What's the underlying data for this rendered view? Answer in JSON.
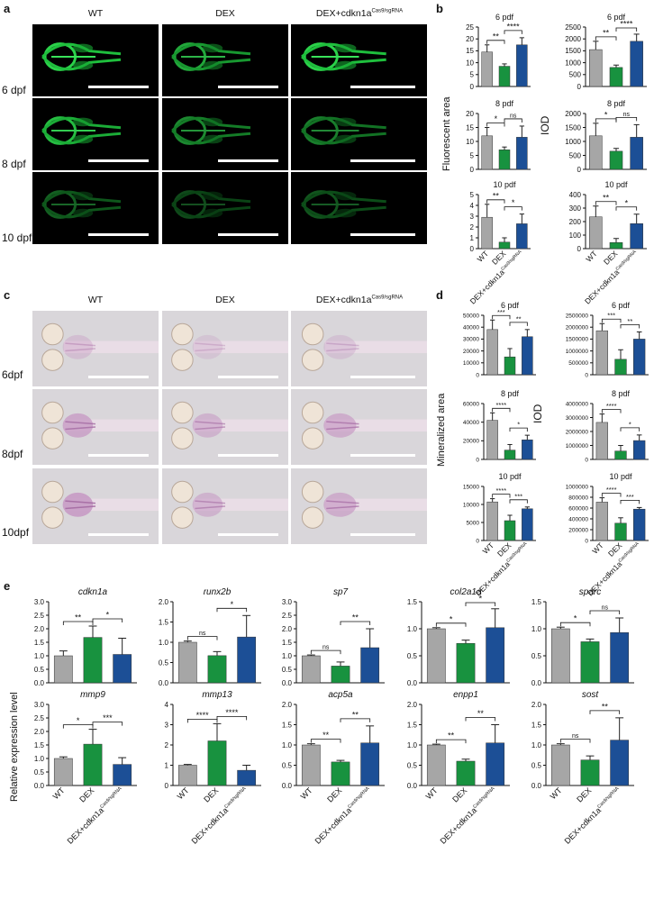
{
  "panels": {
    "a": {
      "letter": "a",
      "columns": [
        "WT",
        "DEX",
        "DEX+cdkn1a"
      ],
      "sup": "Cas9/sgRNA",
      "rows": [
        "6 dpf",
        "8 dpf",
        "10 dpf"
      ]
    },
    "c": {
      "letter": "c",
      "columns": [
        "WT",
        "DEX",
        "DEX+cdkn1a"
      ],
      "sup": "Cas9/sgRNA",
      "rows": [
        "6dpf",
        "8dpf",
        "10dpf"
      ]
    },
    "b": {
      "letter": "b",
      "ylabel_left": "Fluorescent area",
      "ylabel_right": "IOD"
    },
    "d": {
      "letter": "d",
      "ylabel_left": "Mineralized area",
      "ylabel_right": "IOD"
    },
    "e": {
      "letter": "e",
      "ylabel": "Relative expression level"
    }
  },
  "x_categories": [
    "WT",
    "DEX",
    "DEX+cdkn1a"
  ],
  "x_sup": "Cas9/sgRNA",
  "colors": {
    "WT": "#a6a6a6",
    "DEX": "#18923f",
    "CRISPR": "#1c4f96"
  },
  "chart_data": [
    {
      "type": "bar",
      "panel": "b",
      "title": "6 pdf",
      "ylabel": "Fluorescent area",
      "categories": [
        "WT",
        "DEX",
        "DEX+cdkn1a"
      ],
      "values": [
        14.5,
        8.5,
        17.5
      ],
      "errors": [
        3,
        1,
        3
      ],
      "ylim": [
        0,
        25
      ],
      "ticks": [
        0,
        5,
        10,
        15,
        20,
        25
      ],
      "tick_labels": [
        "0",
        "5",
        "10",
        "15",
        "20",
        "25"
      ],
      "sig": [
        {
          "from": 0,
          "to": 1,
          "label": "**"
        },
        {
          "from": 1,
          "to": 2,
          "label": "****"
        }
      ]
    },
    {
      "type": "bar",
      "panel": "b",
      "title": "6 pdf",
      "ylabel": "IOD",
      "categories": [
        "WT",
        "DEX",
        "DEX+cdkn1a"
      ],
      "values": [
        1550,
        800,
        1900
      ],
      "errors": [
        350,
        100,
        300
      ],
      "ylim": [
        0,
        2500
      ],
      "ticks": [
        0,
        500,
        1000,
        1500,
        2000,
        2500
      ],
      "tick_labels": [
        "0",
        "500",
        "1000",
        "1500",
        "2000",
        "2500"
      ],
      "sig": [
        {
          "from": 0,
          "to": 1,
          "label": "**"
        },
        {
          "from": 1,
          "to": 2,
          "label": "****"
        }
      ]
    },
    {
      "type": "bar",
      "panel": "b",
      "title": "8 pdf",
      "ylabel": "Fluorescent area",
      "categories": [
        "WT",
        "DEX",
        "DEX+cdkn1a"
      ],
      "values": [
        12,
        7,
        11.5
      ],
      "errors": [
        3,
        1,
        4
      ],
      "ylim": [
        0,
        20
      ],
      "ticks": [
        0,
        5,
        10,
        15,
        20
      ],
      "tick_labels": [
        "0",
        "5",
        "10",
        "15",
        "20"
      ],
      "sig": [
        {
          "from": 0,
          "to": 1,
          "label": "*"
        },
        {
          "from": 1,
          "to": 2,
          "label": "ns"
        }
      ]
    },
    {
      "type": "bar",
      "panel": "b",
      "title": "8 pdf",
      "ylabel": "IOD",
      "categories": [
        "WT",
        "DEX",
        "DEX+cdkn1a"
      ],
      "values": [
        1200,
        650,
        1150
      ],
      "errors": [
        450,
        100,
        450
      ],
      "ylim": [
        0,
        2000
      ],
      "ticks": [
        0,
        500,
        1000,
        1500,
        2000
      ],
      "tick_labels": [
        "0",
        "500",
        "1000",
        "1500",
        "2000"
      ],
      "sig": [
        {
          "from": 0,
          "to": 1,
          "label": "*"
        },
        {
          "from": 1,
          "to": 2,
          "label": "ns"
        }
      ]
    },
    {
      "type": "bar",
      "panel": "b",
      "title": "10 pdf",
      "ylabel": "Fluorescent area",
      "categories": [
        "WT",
        "DEX",
        "DEX+cdkn1a"
      ],
      "values": [
        2.9,
        0.6,
        2.3
      ],
      "errors": [
        1.2,
        0.4,
        0.9
      ],
      "ylim": [
        0,
        5
      ],
      "ticks": [
        0,
        1,
        2,
        3,
        4,
        5
      ],
      "tick_labels": [
        "0",
        "1",
        "2",
        "3",
        "4",
        "5"
      ],
      "sig": [
        {
          "from": 0,
          "to": 1,
          "label": "**"
        },
        {
          "from": 1,
          "to": 2,
          "label": "*"
        }
      ]
    },
    {
      "type": "bar",
      "panel": "b",
      "title": "10 pdf",
      "ylabel": "IOD",
      "categories": [
        "WT",
        "DEX",
        "DEX+cdkn1a"
      ],
      "values": [
        235,
        45,
        185
      ],
      "errors": [
        80,
        30,
        70
      ],
      "ylim": [
        0,
        400
      ],
      "ticks": [
        0,
        100,
        200,
        300,
        400
      ],
      "tick_labels": [
        "0",
        "100",
        "200",
        "300",
        "400"
      ],
      "sig": [
        {
          "from": 0,
          "to": 1,
          "label": "**"
        },
        {
          "from": 1,
          "to": 2,
          "label": "*"
        }
      ]
    },
    {
      "type": "bar",
      "panel": "d",
      "title": "6 pdf",
      "ylabel": "Mineralized area",
      "categories": [
        "WT",
        "DEX",
        "DEX+cdkn1a"
      ],
      "values": [
        38000,
        15000,
        32000
      ],
      "errors": [
        8000,
        7000,
        6000
      ],
      "ylim": [
        0,
        50000
      ],
      "ticks": [
        0,
        10000,
        20000,
        30000,
        40000,
        50000
      ],
      "tick_labels": [
        "0",
        "10000",
        "20000",
        "30000",
        "40000",
        "50000"
      ],
      "sig": [
        {
          "from": 0,
          "to": 1,
          "label": "***"
        },
        {
          "from": 1,
          "to": 2,
          "label": "**"
        }
      ]
    },
    {
      "type": "bar",
      "panel": "d",
      "title": "6 pdf",
      "ylabel": "IOD",
      "categories": [
        "WT",
        "DEX",
        "DEX+cdkn1a"
      ],
      "values": [
        1850000,
        650000,
        1500000
      ],
      "errors": [
        300000,
        400000,
        300000
      ],
      "ylim": [
        0,
        2500000
      ],
      "ticks": [
        0,
        500000,
        1000000,
        1500000,
        2000000,
        2500000
      ],
      "tick_labels": [
        "0",
        "500000",
        "1000000",
        "1500000",
        "2000000",
        "2500000"
      ],
      "sig": [
        {
          "from": 0,
          "to": 1,
          "label": "***"
        },
        {
          "from": 1,
          "to": 2,
          "label": "**"
        }
      ]
    },
    {
      "type": "bar",
      "panel": "d",
      "title": "8 pdf",
      "ylabel": "Mineralized area",
      "categories": [
        "WT",
        "DEX",
        "DEX+cdkn1a"
      ],
      "values": [
        42000,
        10000,
        21000
      ],
      "errors": [
        8000,
        6000,
        5000
      ],
      "ylim": [
        0,
        60000
      ],
      "ticks": [
        0,
        20000,
        40000,
        60000
      ],
      "tick_labels": [
        "0",
        "20000",
        "40000",
        "60000"
      ],
      "sig": [
        {
          "from": 0,
          "to": 1,
          "label": "****"
        },
        {
          "from": 1,
          "to": 2,
          "label": "*"
        }
      ]
    },
    {
      "type": "bar",
      "panel": "d",
      "title": "8 pdf",
      "ylabel": "IOD",
      "categories": [
        "WT",
        "DEX",
        "DEX+cdkn1a"
      ],
      "values": [
        2650000,
        600000,
        1350000
      ],
      "errors": [
        600000,
        400000,
        400000
      ],
      "ylim": [
        0,
        4000000
      ],
      "ticks": [
        0,
        1000000,
        2000000,
        3000000,
        4000000
      ],
      "tick_labels": [
        "0",
        "1000000",
        "2000000",
        "3000000",
        "4000000"
      ],
      "sig": [
        {
          "from": 0,
          "to": 1,
          "label": "****"
        },
        {
          "from": 1,
          "to": 2,
          "label": "*"
        }
      ]
    },
    {
      "type": "bar",
      "panel": "d",
      "title": "10 pdf",
      "ylabel": "Mineralized area",
      "categories": [
        "WT",
        "DEX",
        "DEX+cdkn1a"
      ],
      "values": [
        10700,
        5500,
        8800
      ],
      "errors": [
        900,
        1500,
        500
      ],
      "ylim": [
        0,
        15000
      ],
      "ticks": [
        0,
        5000,
        10000,
        15000
      ],
      "tick_labels": [
        "0",
        "5000",
        "10000",
        "15000"
      ],
      "sig": [
        {
          "from": 0,
          "to": 1,
          "label": "****"
        },
        {
          "from": 1,
          "to": 2,
          "label": "***"
        }
      ]
    },
    {
      "type": "bar",
      "panel": "d",
      "title": "10 pdf",
      "ylabel": "IOD",
      "categories": [
        "WT",
        "DEX",
        "DEX+cdkn1a"
      ],
      "values": [
        710000,
        320000,
        580000
      ],
      "errors": [
        80000,
        100000,
        30000
      ],
      "ylim": [
        0,
        1000000
      ],
      "ticks": [
        0,
        200000,
        400000,
        600000,
        800000,
        1000000
      ],
      "tick_labels": [
        "0",
        "200000",
        "400000",
        "600000",
        "800000",
        "1000000"
      ],
      "sig": [
        {
          "from": 0,
          "to": 1,
          "label": "****"
        },
        {
          "from": 1,
          "to": 2,
          "label": "***"
        }
      ]
    },
    {
      "type": "bar",
      "panel": "e",
      "title": "cdkn1a",
      "categories": [
        "WT",
        "DEX",
        "DEX+cdkn1a"
      ],
      "values": [
        1.0,
        1.68,
        1.05
      ],
      "errors": [
        0.18,
        0.42,
        0.6
      ],
      "ylim": [
        0,
        3.0
      ],
      "ticks": [
        0,
        0.5,
        1,
        1.5,
        2,
        2.5,
        3
      ],
      "tick_labels": [
        "0.0",
        "0.5",
        "1.0",
        "1.5",
        "2.0",
        "2.5",
        "3.0"
      ],
      "sig": [
        {
          "from": 0,
          "to": 1,
          "label": "**"
        },
        {
          "from": 1,
          "to": 2,
          "label": "*"
        }
      ]
    },
    {
      "type": "bar",
      "panel": "e",
      "title": "runx2b",
      "categories": [
        "WT",
        "DEX",
        "DEX+cdkn1a"
      ],
      "values": [
        1.0,
        0.67,
        1.13
      ],
      "errors": [
        0.03,
        0.1,
        0.53
      ],
      "ylim": [
        0,
        2.0
      ],
      "ticks": [
        0,
        0.5,
        1,
        1.5,
        2
      ],
      "tick_labels": [
        "0.0",
        "0.5",
        "1.0",
        "1.5",
        "2.0"
      ],
      "sig": [
        {
          "from": 0,
          "to": 1,
          "label": "ns"
        },
        {
          "from": 1,
          "to": 2,
          "label": "*"
        }
      ]
    },
    {
      "type": "bar",
      "panel": "e",
      "title": "sp7",
      "categories": [
        "WT",
        "DEX",
        "DEX+cdkn1a"
      ],
      "values": [
        1.0,
        0.62,
        1.3
      ],
      "errors": [
        0.03,
        0.15,
        0.7
      ],
      "ylim": [
        0,
        3.0
      ],
      "ticks": [
        0,
        0.5,
        1,
        1.5,
        2,
        2.5,
        3
      ],
      "tick_labels": [
        "0.0",
        "0.5",
        "1.0",
        "1.5",
        "2.0",
        "2.5",
        "3.0"
      ],
      "sig": [
        {
          "from": 0,
          "to": 1,
          "label": "ns"
        },
        {
          "from": 1,
          "to": 2,
          "label": "**"
        }
      ]
    },
    {
      "type": "bar",
      "panel": "e",
      "title": "col2a1a",
      "categories": [
        "WT",
        "DEX",
        "DEX+cdkn1a"
      ],
      "values": [
        1.0,
        0.73,
        1.02
      ],
      "errors": [
        0.02,
        0.06,
        0.35
      ],
      "ylim": [
        0,
        1.5
      ],
      "ticks": [
        0,
        0.5,
        1,
        1.5
      ],
      "tick_labels": [
        "0.0",
        "0.5",
        "1.0",
        "1.5"
      ],
      "sig": [
        {
          "from": 0,
          "to": 1,
          "label": "*"
        },
        {
          "from": 1,
          "to": 2,
          "label": "*"
        }
      ]
    },
    {
      "type": "bar",
      "panel": "e",
      "title": "sparc",
      "categories": [
        "WT",
        "DEX",
        "DEX+cdkn1a"
      ],
      "values": [
        1.0,
        0.76,
        0.93
      ],
      "errors": [
        0.03,
        0.05,
        0.27
      ],
      "ylim": [
        0,
        1.5
      ],
      "ticks": [
        0,
        0.5,
        1,
        1.5
      ],
      "tick_labels": [
        "0.0",
        "0.5",
        "1.0",
        "1.5"
      ],
      "sig": [
        {
          "from": 0,
          "to": 1,
          "label": "*"
        },
        {
          "from": 1,
          "to": 2,
          "label": "ns"
        }
      ]
    },
    {
      "type": "bar",
      "panel": "e",
      "title": "mmp9",
      "categories": [
        "WT",
        "DEX",
        "DEX+cdkn1a"
      ],
      "values": [
        1.0,
        1.53,
        0.78
      ],
      "errors": [
        0.06,
        0.55,
        0.25
      ],
      "ylim": [
        0,
        3.0
      ],
      "ticks": [
        0,
        0.5,
        1,
        1.5,
        2,
        2.5,
        3
      ],
      "tick_labels": [
        "0.0",
        "0.5",
        "1.0",
        "1.5",
        "2.0",
        "2.5",
        "3.0"
      ],
      "sig": [
        {
          "from": 0,
          "to": 1,
          "label": "*"
        },
        {
          "from": 1,
          "to": 2,
          "label": "***"
        }
      ]
    },
    {
      "type": "bar",
      "panel": "e",
      "title": "mmp13",
      "categories": [
        "WT",
        "DEX",
        "DEX+cdkn1a"
      ],
      "values": [
        1.0,
        2.2,
        0.75
      ],
      "errors": [
        0.04,
        0.85,
        0.25
      ],
      "ylim": [
        0,
        4
      ],
      "ticks": [
        0,
        1,
        2,
        3,
        4
      ],
      "tick_labels": [
        "0",
        "1",
        "2",
        "3",
        "4"
      ],
      "sig": [
        {
          "from": 0,
          "to": 1,
          "label": "****"
        },
        {
          "from": 1,
          "to": 2,
          "label": "****"
        }
      ]
    },
    {
      "type": "bar",
      "panel": "e",
      "title": "acp5a",
      "categories": [
        "WT",
        "DEX",
        "DEX+cdkn1a"
      ],
      "values": [
        1.0,
        0.58,
        1.05
      ],
      "errors": [
        0.03,
        0.04,
        0.42
      ],
      "ylim": [
        0,
        2.0
      ],
      "ticks": [
        0,
        0.5,
        1,
        1.5,
        2
      ],
      "tick_labels": [
        "0.0",
        "0.5",
        "1.0",
        "1.5",
        "2.0"
      ],
      "sig": [
        {
          "from": 0,
          "to": 1,
          "label": "**"
        },
        {
          "from": 1,
          "to": 2,
          "label": "**"
        }
      ]
    },
    {
      "type": "bar",
      "panel": "e",
      "title": "enpp1",
      "categories": [
        "WT",
        "DEX",
        "DEX+cdkn1a"
      ],
      "values": [
        1.0,
        0.6,
        1.05
      ],
      "errors": [
        0.02,
        0.05,
        0.45
      ],
      "ylim": [
        0,
        2.0
      ],
      "ticks": [
        0,
        0.5,
        1,
        1.5,
        2
      ],
      "tick_labels": [
        "0.0",
        "0.5",
        "1.0",
        "1.5",
        "2.0"
      ],
      "sig": [
        {
          "from": 0,
          "to": 1,
          "label": "**"
        },
        {
          "from": 1,
          "to": 2,
          "label": "**"
        }
      ]
    },
    {
      "type": "bar",
      "panel": "e",
      "title": "sost",
      "categories": [
        "WT",
        "DEX",
        "DEX+cdkn1a"
      ],
      "values": [
        1.0,
        0.63,
        1.12
      ],
      "errors": [
        0.03,
        0.1,
        0.55
      ],
      "ylim": [
        0,
        2.0
      ],
      "ticks": [
        0,
        0.5,
        1,
        1.5,
        2
      ],
      "tick_labels": [
        "0.0",
        "0.5",
        "1.0",
        "1.5",
        "2.0"
      ],
      "sig": [
        {
          "from": 0,
          "to": 1,
          "label": "ns"
        },
        {
          "from": 1,
          "to": 2,
          "label": "**"
        }
      ]
    }
  ]
}
